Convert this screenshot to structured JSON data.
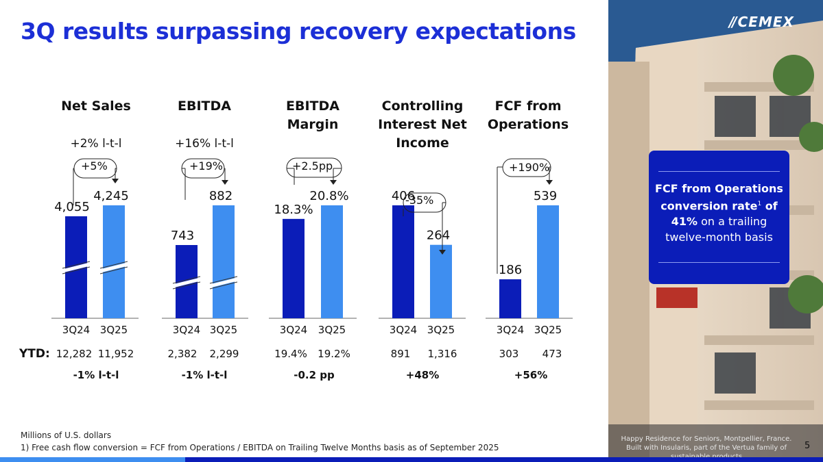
{
  "title": "3Q results surpassing recovery expectations",
  "colors": {
    "dark_bar": "#0b1db8",
    "light_bar": "#3e8ef0",
    "title": "#1c2fd6"
  },
  "chart_data": [
    {
      "type": "bar",
      "title": "Net Sales",
      "yoy_label": "+2% l-t-l",
      "change_label": "+5%",
      "categories": [
        "3Q24",
        "3Q25"
      ],
      "values": [
        4055,
        4245
      ],
      "value_labels": [
        "4,055",
        "4,245"
      ],
      "axis_break": true,
      "ytd": [
        "12,282",
        "11,952"
      ],
      "ytd_change": "-1% l-t-l"
    },
    {
      "type": "bar",
      "title": "EBITDA",
      "yoy_label": "+16% l-t-l",
      "change_label": "+19%",
      "categories": [
        "3Q24",
        "3Q25"
      ],
      "values": [
        743,
        882
      ],
      "value_labels": [
        "743",
        "882"
      ],
      "axis_break": true,
      "ytd": [
        "2,382",
        "2,299"
      ],
      "ytd_change": "-1% l-t-l"
    },
    {
      "type": "bar",
      "title": "EBITDA Margin",
      "yoy_label": "",
      "change_label": "+2.5pp",
      "categories": [
        "3Q24",
        "3Q25"
      ],
      "values": [
        18.3,
        20.8
      ],
      "value_labels": [
        "18.3%",
        "20.8%"
      ],
      "axis_break": false,
      "ytd": [
        "19.4%",
        "19.2%"
      ],
      "ytd_change": "-0.2 pp"
    },
    {
      "type": "bar",
      "title": "Controlling Interest Net Income",
      "yoy_label": "",
      "change_label": "-35%",
      "categories": [
        "3Q24",
        "3Q25"
      ],
      "values": [
        406,
        264
      ],
      "value_labels": [
        "406",
        "264"
      ],
      "axis_break": false,
      "ytd": [
        "891",
        "1,316"
      ],
      "ytd_change": "+48%"
    },
    {
      "type": "bar",
      "title": "FCF from Operations",
      "yoy_label": "",
      "change_label": "+190%",
      "categories": [
        "3Q24",
        "3Q25"
      ],
      "values": [
        186,
        539
      ],
      "value_labels": [
        "186",
        "539"
      ],
      "axis_break": false,
      "ytd": [
        "303",
        "473"
      ],
      "ytd_change": "+56%"
    }
  ],
  "chart_titles": [
    "Net Sales",
    "EBITDA",
    "EBITDA\nMargin",
    "Controlling\nInterest Net\nIncome",
    "FCF from\nOperations"
  ],
  "ytd_label": "YTD:",
  "callout": {
    "prefix": "FCF from Operations conversion rate",
    "sup": "1",
    "of": " of",
    "bold_value": "41%",
    "suffix": " on a trailing twelve-month basis"
  },
  "footnotes": {
    "units": "Millions of U.S. dollars",
    "note1": "1) Free cash flow conversion = FCF from Operations / EBITDA on Trailing Twelve Months basis as of September 2025"
  },
  "photo_caption": "Happy Residence for Seniors, Montpellier, France. Built with Insularis, part of the Vertua family of sustainable products",
  "logo": {
    "mark": "//",
    "text": "CEMEX"
  },
  "page_number": "5"
}
